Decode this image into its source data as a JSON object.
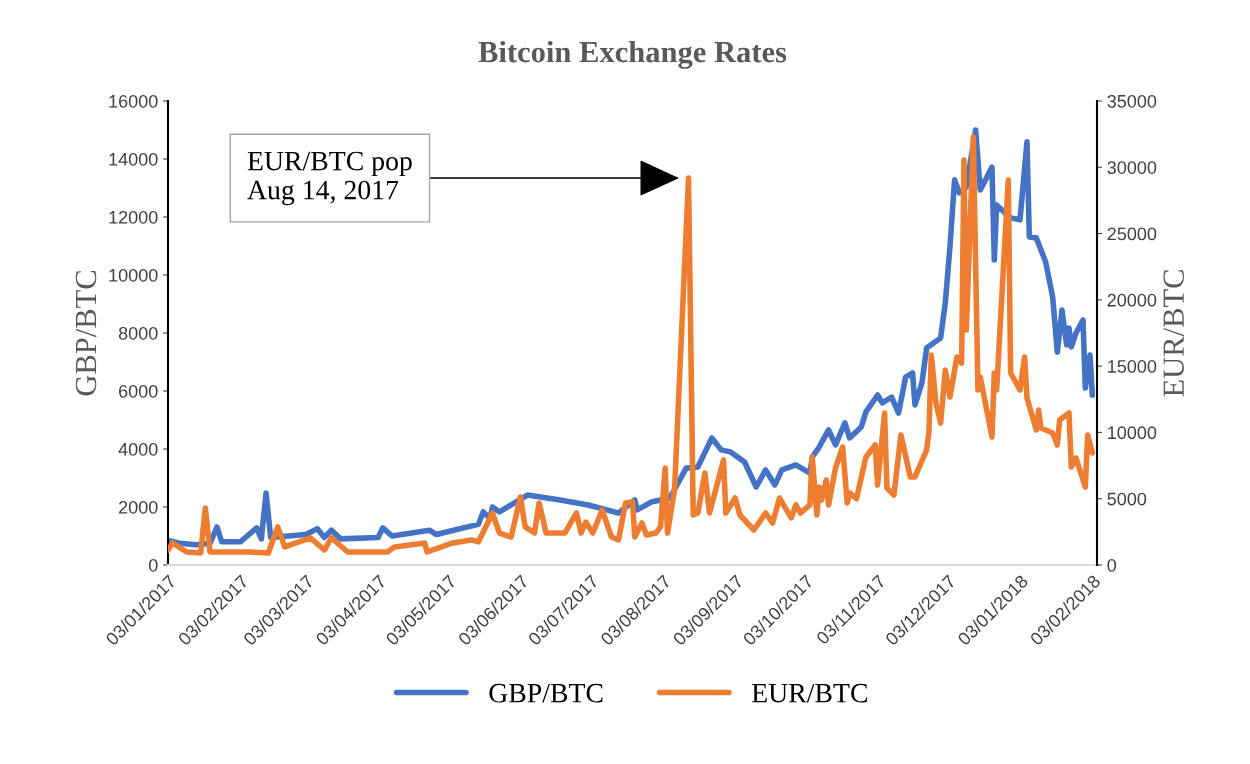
{
  "chart_data": {
    "type": "line",
    "title": "Bitcoin Exchange Rates",
    "ylabel": "GBP/BTC",
    "y2label": "EUR/BTC",
    "xlim": [
      "2017-01-03",
      "2018-02-05"
    ],
    "xticks": [
      {
        "value": "2017-01-03",
        "label": "03/01/2017"
      },
      {
        "value": "2017-02-03",
        "label": "03/02/2017"
      },
      {
        "value": "2017-03-03",
        "label": "03/03/2017"
      },
      {
        "value": "2017-04-03",
        "label": "03/04/2017"
      },
      {
        "value": "2017-05-03",
        "label": "03/05/2017"
      },
      {
        "value": "2017-06-03",
        "label": "03/06/2017"
      },
      {
        "value": "2017-07-03",
        "label": "03/07/2017"
      },
      {
        "value": "2017-08-03",
        "label": "03/08/2017"
      },
      {
        "value": "2017-09-03",
        "label": "03/09/2017"
      },
      {
        "value": "2017-10-03",
        "label": "03/10/2017"
      },
      {
        "value": "2017-11-03",
        "label": "03/11/2017"
      },
      {
        "value": "2017-12-03",
        "label": "03/12/2017"
      },
      {
        "value": "2018-01-03",
        "label": "03/01/2018"
      },
      {
        "value": "2018-02-03",
        "label": "03/02/2018"
      }
    ],
    "ylim": [
      0,
      16000
    ],
    "yticks": [
      0,
      2000,
      4000,
      6000,
      8000,
      10000,
      12000,
      14000,
      16000
    ],
    "y2lim": [
      0,
      35000
    ],
    "y2ticks": [
      0,
      5000,
      10000,
      15000,
      20000,
      25000,
      30000,
      35000
    ],
    "legend": "bottom",
    "grid": false,
    "annotations": [
      "EUR/BTC pop\nAug 14, 2017"
    ],
    "series": [
      {
        "name": "GBP/BTC",
        "color": "#4472c4",
        "x": [
          "2017-01-03",
          "2017-01-08",
          "2017-01-15",
          "2017-01-21",
          "2017-01-24",
          "2017-01-26",
          "2017-02-03",
          "2017-02-10",
          "2017-02-12",
          "2017-02-14",
          "2017-02-16",
          "2017-03-03",
          "2017-03-08",
          "2017-03-11",
          "2017-03-14",
          "2017-03-18",
          "2017-04-03",
          "2017-04-05",
          "2017-04-09",
          "2017-04-25",
          "2017-04-28",
          "2017-05-08",
          "2017-05-16",
          "2017-05-18",
          "2017-05-21",
          "2017-05-22",
          "2017-05-25",
          "2017-06-06",
          "2017-06-20",
          "2017-07-02",
          "2017-07-15",
          "2017-07-22",
          "2017-07-23",
          "2017-07-29",
          "2017-08-06",
          "2017-08-13",
          "2017-08-18",
          "2017-08-24",
          "2017-08-28",
          "2017-09-01",
          "2017-09-07",
          "2017-09-12",
          "2017-09-16",
          "2017-09-20",
          "2017-09-23",
          "2017-09-29",
          "2017-10-05",
          "2017-10-06",
          "2017-10-09",
          "2017-10-13",
          "2017-10-16",
          "2017-10-20",
          "2017-10-22",
          "2017-10-27",
          "2017-10-29",
          "2017-11-03",
          "2017-11-05",
          "2017-11-09",
          "2017-11-12",
          "2017-11-15",
          "2017-11-18",
          "2017-11-19",
          "2017-11-22",
          "2017-11-24",
          "2017-11-30",
          "2017-12-02",
          "2017-12-04",
          "2017-12-06",
          "2017-12-08",
          "2017-12-11",
          "2017-12-15",
          "2017-12-17",
          "2017-12-22",
          "2017-12-23",
          "2017-12-24",
          "2017-12-30",
          "2018-01-03",
          "2018-01-06",
          "2018-01-07",
          "2018-01-10",
          "2018-01-14",
          "2018-01-17",
          "2018-01-19",
          "2018-01-21",
          "2018-01-23",
          "2018-01-24",
          "2018-01-25",
          "2018-01-27",
          "2018-01-30",
          "2018-01-31",
          "2018-02-02",
          "2018-02-03"
        ],
        "values": [
          850,
          750,
          700,
          750,
          1310,
          800,
          800,
          1280,
          900,
          2480,
          950,
          1050,
          1250,
          950,
          1200,
          900,
          950,
          1280,
          1000,
          1200,
          1050,
          1250,
          1400,
          1830,
          1600,
          2000,
          1830,
          2410,
          2240,
          2070,
          1790,
          2240,
          1900,
          2170,
          2310,
          3340,
          3380,
          4380,
          3970,
          3900,
          3550,
          2690,
          3280,
          2760,
          3280,
          3450,
          3170,
          3720,
          4070,
          4660,
          4140,
          4900,
          4380,
          4760,
          5280,
          5860,
          5590,
          5790,
          5240,
          6480,
          6620,
          5520,
          6280,
          7480,
          7830,
          9030,
          10970,
          13280,
          12830,
          13030,
          15000,
          12930,
          13720,
          10520,
          12410,
          11970,
          11900,
          14590,
          11310,
          11280,
          10450,
          9240,
          7340,
          8790,
          7590,
          8170,
          7520,
          8000,
          8450,
          6100,
          7240,
          5860
        ]
      },
      {
        "name": "EUR/BTC",
        "color": "#ed7d31",
        "axis": "y2",
        "x": [
          "2017-01-03",
          "2017-01-05",
          "2017-01-11",
          "2017-01-17",
          "2017-01-19",
          "2017-01-21",
          "2017-02-07",
          "2017-02-15",
          "2017-02-19",
          "2017-02-22",
          "2017-03-05",
          "2017-03-11",
          "2017-03-14",
          "2017-03-21",
          "2017-04-07",
          "2017-04-10",
          "2017-04-23",
          "2017-04-24",
          "2017-05-05",
          "2017-05-13",
          "2017-05-16",
          "2017-05-22",
          "2017-05-25",
          "2017-05-30",
          "2017-06-03",
          "2017-06-05",
          "2017-06-09",
          "2017-06-11",
          "2017-06-14",
          "2017-06-22",
          "2017-06-27",
          "2017-06-29",
          "2017-07-01",
          "2017-07-04",
          "2017-07-08",
          "2017-07-12",
          "2017-07-15",
          "2017-07-18",
          "2017-07-21",
          "2017-07-22",
          "2017-07-25",
          "2017-07-27",
          "2017-07-31",
          "2017-08-02",
          "2017-08-04",
          "2017-08-05",
          "2017-08-08",
          "2017-08-14",
          "2017-08-16",
          "2017-08-18",
          "2017-08-21",
          "2017-08-23",
          "2017-08-29",
          "2017-08-30",
          "2017-09-03",
          "2017-09-05",
          "2017-09-11",
          "2017-09-16",
          "2017-09-19",
          "2017-09-22",
          "2017-09-27",
          "2017-09-29",
          "2017-10-01",
          "2017-10-05",
          "2017-10-06",
          "2017-10-08",
          "2017-10-09",
          "2017-10-10",
          "2017-10-12",
          "2017-10-13",
          "2017-10-16",
          "2017-10-19",
          "2017-10-21",
          "2017-10-22",
          "2017-10-25",
          "2017-10-29",
          "2017-11-02",
          "2017-11-03",
          "2017-11-06",
          "2017-11-07",
          "2017-11-10",
          "2017-11-13",
          "2017-11-17",
          "2017-11-19",
          "2017-11-24",
          "2017-11-25",
          "2017-11-26",
          "2017-11-28",
          "2017-11-30",
          "2017-12-02",
          "2017-12-04",
          "2017-12-07",
          "2017-12-09",
          "2017-12-10",
          "2017-12-11",
          "2017-12-14",
          "2017-12-16",
          "2017-12-17",
          "2017-12-22",
          "2017-12-23",
          "2017-12-24",
          "2017-12-29",
          "2017-12-30",
          "2018-01-03",
          "2018-01-05",
          "2018-01-06",
          "2018-01-10",
          "2018-01-11",
          "2018-01-12",
          "2018-01-17",
          "2018-01-19",
          "2018-01-20",
          "2018-01-24",
          "2018-01-25",
          "2018-01-27",
          "2018-01-31",
          "2018-02-01",
          "2018-02-03"
        ],
        "values": [
          1130,
          1660,
          980,
          900,
          4300,
          980,
          980,
          900,
          2870,
          1360,
          2040,
          1130,
          2040,
          980,
          980,
          1360,
          1660,
          980,
          1660,
          1890,
          1740,
          3920,
          2410,
          2110,
          5130,
          2870,
          2410,
          4680,
          2410,
          2410,
          3920,
          2410,
          3240,
          2410,
          4150,
          2110,
          1890,
          4680,
          4750,
          2110,
          3170,
          2260,
          2410,
          2870,
          7320,
          2410,
          5660,
          29190,
          3770,
          3920,
          6940,
          3920,
          7920,
          3920,
          5050,
          3770,
          2640,
          3920,
          3170,
          5050,
          3550,
          4530,
          3920,
          4530,
          8150,
          3770,
          5880,
          4900,
          6410,
          4530,
          7320,
          8900,
          4680,
          5430,
          5000,
          8150,
          9050,
          6030,
          11470,
          5810,
          5280,
          9810,
          6640,
          6640,
          8670,
          10030,
          15840,
          12220,
          10710,
          14710,
          12670,
          15690,
          15240,
          30550,
          17730,
          32280,
          13200,
          14180,
          9660,
          14480,
          13200,
          29040,
          14480,
          13200,
          15690,
          12600,
          10180,
          11690,
          10330,
          9960,
          9050,
          10940,
          11470,
          7390,
          8070,
          5880,
          9810,
          8450
        ]
      }
    ]
  }
}
